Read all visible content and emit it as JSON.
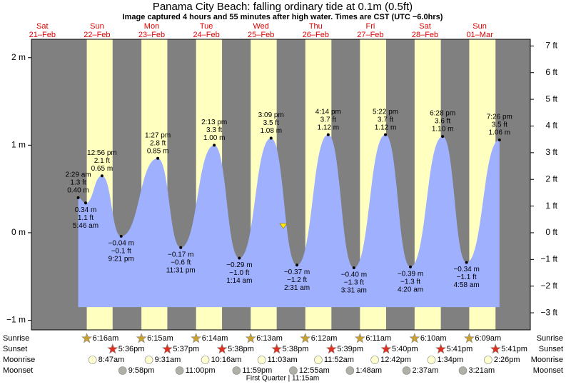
{
  "chart_data": {
    "type": "tide",
    "title": "Panama City Beach: falling  ordinary tide at 0.1m (0.5ft)",
    "subtitle": "Image captured 4 hours and 55 minutes after high water. Times are CST (UTC −6.0hrs)",
    "ylim": [
      -1.11,
      2.21
    ],
    "yticks": [
      {
        "value": 2,
        "label": "2 m"
      },
      {
        "value": 1,
        "label": "1 m"
      },
      {
        "value": 0,
        "label": "0 m"
      },
      {
        "value": -1,
        "label": "−1 m"
      }
    ],
    "y2lim": [
      -3.64,
      7.25
    ],
    "y2ticks": [
      {
        "value": 7,
        "label": "7 ft"
      },
      {
        "value": 6,
        "label": "6 ft"
      },
      {
        "value": 5,
        "label": "5 ft"
      },
      {
        "value": 4,
        "label": "4 ft"
      },
      {
        "value": 3,
        "label": "3 ft"
      },
      {
        "value": 2,
        "label": "2 ft"
      },
      {
        "value": 1,
        "label": "1 ft"
      },
      {
        "value": 0,
        "label": "0 ft"
      },
      {
        "value": -1,
        "label": "−1 ft"
      },
      {
        "value": -2,
        "label": "−2 ft"
      },
      {
        "value": -3,
        "label": "−3 ft"
      }
    ],
    "row_labels": [
      "Sunrise",
      "Sunset",
      "Moonrise",
      "Moonset"
    ],
    "moon_phase": "First Quarter | 11:15am",
    "days": [
      {
        "weekday": "Sat",
        "date": "21–Feb",
        "sunrise": null,
        "sunset": null,
        "moonrise": null,
        "moonset": null,
        "tides": []
      },
      {
        "weekday": "Sun",
        "date": "22–Feb",
        "sunrise": "6:16am",
        "sunset": "5:36pm",
        "moonrise": "8:47am",
        "moonset": "9:58pm",
        "tides": [
          {
            "time": "2:29 am",
            "value": 0.4,
            "label": "0.40 m",
            "ft": "1.3 ft"
          },
          {
            "time": "5:46 am",
            "value": 0.34,
            "label": "0.34 m",
            "ft": "1.1 ft"
          },
          {
            "time": "12:56 pm",
            "value": 0.65,
            "label": "0.65 m",
            "ft": "2.1 ft"
          },
          {
            "time": "9:21 pm",
            "value": -0.04,
            "label": "−0.04 m",
            "ft": "−0.1 ft"
          }
        ]
      },
      {
        "weekday": "Mon",
        "date": "23–Feb",
        "sunrise": "6:15am",
        "sunset": "5:37pm",
        "moonrise": "9:31am",
        "moonset": "11:00pm",
        "tides": [
          {
            "time": "1:27 pm",
            "value": 0.85,
            "label": "0.85 m",
            "ft": "2.8 ft"
          },
          {
            "time": "11:31 pm",
            "value": -0.17,
            "label": "−0.17 m",
            "ft": "−0.6 ft"
          }
        ]
      },
      {
        "weekday": "Tue",
        "date": "24–Feb",
        "sunrise": "6:14am",
        "sunset": "5:38pm",
        "moonrise": "10:16am",
        "moonset": "11:59pm",
        "tides": [
          {
            "time": "2:13 pm",
            "value": 1.0,
            "label": "1.00 m",
            "ft": "3.3 ft"
          }
        ]
      },
      {
        "weekday": "Wed",
        "date": "25–Feb",
        "sunrise": "6:13am",
        "sunset": "5:38pm",
        "moonrise": "11:03am",
        "moonset": null,
        "tides": [
          {
            "time": "1:14 am",
            "value": -0.29,
            "label": "−0.29 m",
            "ft": "−1.0 ft"
          },
          {
            "time": "3:09 pm",
            "value": 1.08,
            "label": "1.08 m",
            "ft": "3.5 ft"
          }
        ]
      },
      {
        "weekday": "Thu",
        "date": "26–Feb",
        "sunrise": "6:12am",
        "sunset": "5:39pm",
        "moonrise": "11:52am",
        "moonset": "12:55am",
        "tides": [
          {
            "time": "2:31 am",
            "value": -0.37,
            "label": "−0.37 m",
            "ft": "−1.2 ft"
          },
          {
            "time": "4:14 pm",
            "value": 1.12,
            "label": "1.12 m",
            "ft": "3.7 ft"
          }
        ]
      },
      {
        "weekday": "Fri",
        "date": "27–Feb",
        "sunrise": "6:11am",
        "sunset": "5:40pm",
        "moonrise": "12:42pm",
        "moonset": "1:48am",
        "tides": [
          {
            "time": "3:31 am",
            "value": -0.4,
            "label": "−0.40 m",
            "ft": "−1.3 ft"
          },
          {
            "time": "5:22 pm",
            "value": 1.12,
            "label": "1.12 m",
            "ft": "3.7 ft"
          }
        ]
      },
      {
        "weekday": "Sat",
        "date": "28–Feb",
        "sunrise": "6:10am",
        "sunset": "5:41pm",
        "moonrise": "1:34pm",
        "moonset": "2:37am",
        "tides": [
          {
            "time": "4:20 am",
            "value": -0.39,
            "label": "−0.39 m",
            "ft": "−1.3 ft"
          },
          {
            "time": "6:28 pm",
            "value": 1.1,
            "label": "1.10 m",
            "ft": "3.6 ft"
          }
        ]
      },
      {
        "weekday": "Sun",
        "date": "01–Mar",
        "sunrise": "6:09am",
        "sunset": "5:41pm",
        "moonrise": "2:26pm",
        "moonset": "3:21am",
        "tides": [
          {
            "time": "4:58 am",
            "value": -0.34,
            "label": "−0.34 m",
            "ft": "−1.1 ft"
          },
          {
            "time": "7:26 pm",
            "value": 1.06,
            "label": "1.06 m",
            "ft": "3.5 ft"
          }
        ]
      }
    ]
  }
}
